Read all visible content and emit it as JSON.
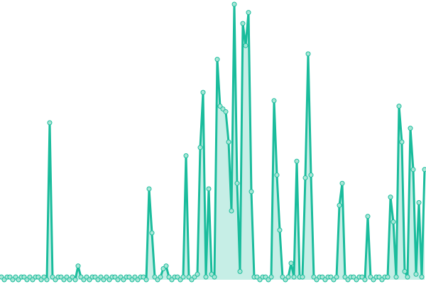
{
  "chart_data": {
    "type": "line",
    "color": "#1abc9c",
    "marker_fill": "#a8e6d6",
    "ylim": [
      0,
      100
    ],
    "values": [
      1,
      0,
      1,
      1,
      0,
      1,
      0,
      1,
      1,
      0,
      1,
      0,
      1,
      1,
      0,
      1,
      0,
      57,
      1,
      0,
      1,
      1,
      0,
      1,
      0,
      1,
      0,
      5,
      1,
      0,
      1,
      0,
      1,
      1,
      0,
      1,
      0,
      1,
      0,
      1,
      1,
      0,
      1,
      0,
      1,
      1,
      0,
      1,
      0,
      1,
      1,
      0,
      33,
      17,
      1,
      0,
      1,
      4,
      5,
      1,
      0,
      1,
      1,
      0,
      1,
      45,
      1,
      0,
      1,
      2,
      48,
      68,
      1,
      33,
      2,
      1,
      80,
      63,
      62,
      61,
      50,
      25,
      100,
      35,
      3,
      93,
      85,
      97,
      32,
      1,
      1,
      0,
      1,
      1,
      0,
      1,
      65,
      38,
      18,
      1,
      0,
      1,
      6,
      1,
      43,
      1,
      1,
      37,
      82,
      38,
      1,
      0,
      1,
      1,
      0,
      1,
      1,
      0,
      1,
      27,
      35,
      1,
      0,
      1,
      1,
      0,
      1,
      1,
      0,
      23,
      1,
      0,
      1,
      1,
      0,
      1,
      1,
      30,
      21,
      1,
      63,
      50,
      3,
      1,
      55,
      40,
      2,
      28,
      1,
      40
    ]
  }
}
